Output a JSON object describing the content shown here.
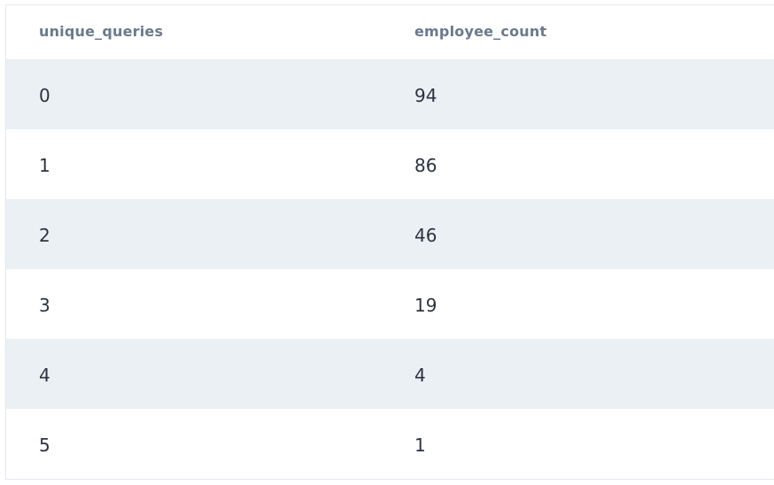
{
  "table": {
    "columns": [
      "unique_queries",
      "employee_count"
    ],
    "rows": [
      [
        "0",
        "94"
      ],
      [
        "1",
        "86"
      ],
      [
        "2",
        "46"
      ],
      [
        "3",
        "19"
      ],
      [
        "4",
        "4"
      ],
      [
        "5",
        "1"
      ]
    ]
  },
  "colors": {
    "header_text": "#6b7a8c",
    "cell_text": "#2a3340",
    "striped_row_bg": "#ebf0f5",
    "border": "#e3e7ec"
  }
}
